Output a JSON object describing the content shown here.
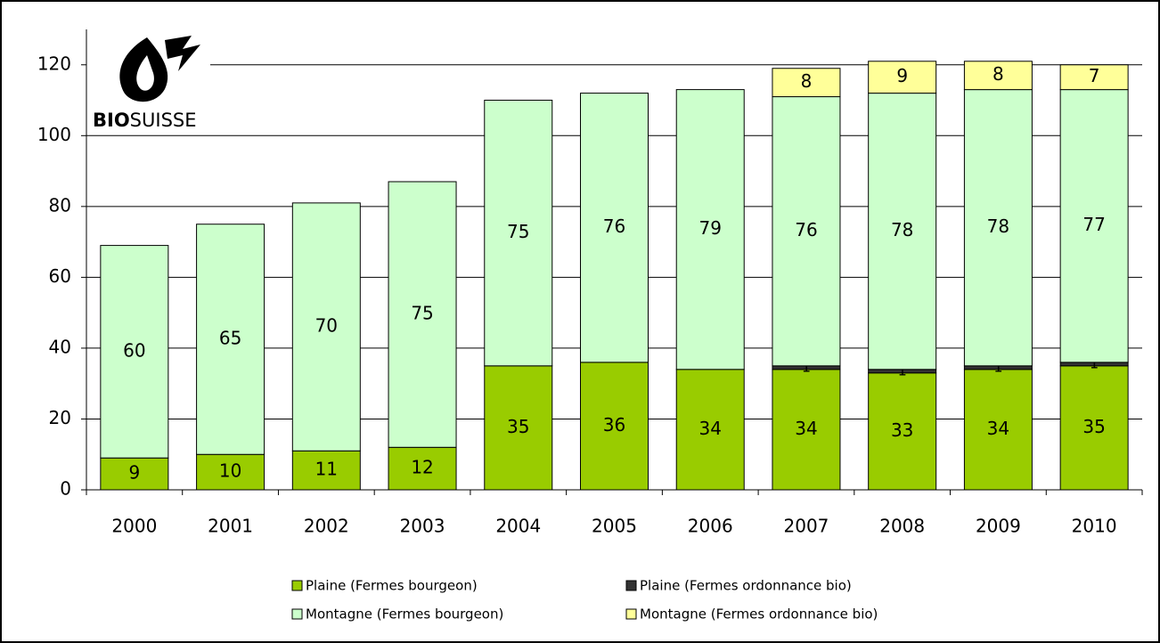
{
  "chart_data": {
    "type": "stacked_bar",
    "logo": {
      "bold": "BIO",
      "rest": "SUISSE"
    },
    "categories": [
      "2000",
      "2001",
      "2002",
      "2003",
      "2004",
      "2005",
      "2006",
      "2007",
      "2008",
      "2009",
      "2010"
    ],
    "series": [
      {
        "name": "Plaine (Fermes bourgeon)",
        "color": "#99cc00",
        "values": [
          9,
          10,
          11,
          12,
          35,
          36,
          34,
          34,
          33,
          34,
          35
        ]
      },
      {
        "name": "Plaine (Fermes ordonnance bio)",
        "color": "#333333",
        "values": [
          null,
          null,
          null,
          null,
          null,
          null,
          null,
          1,
          1,
          1,
          1
        ]
      },
      {
        "name": "Montagne (Fermes bourgeon)",
        "color": "#ccffcc",
        "values": [
          60,
          65,
          70,
          75,
          75,
          76,
          79,
          76,
          78,
          78,
          77
        ]
      },
      {
        "name": "Montagne (Fermes ordonnance bio)",
        "color": "#ffff99",
        "values": [
          null,
          null,
          null,
          null,
          null,
          null,
          null,
          8,
          9,
          8,
          7
        ]
      }
    ],
    "ylim": [
      0,
      130
    ],
    "yticks": [
      0,
      20,
      40,
      60,
      80,
      100,
      120
    ],
    "grid": true,
    "legend": "bottom"
  }
}
